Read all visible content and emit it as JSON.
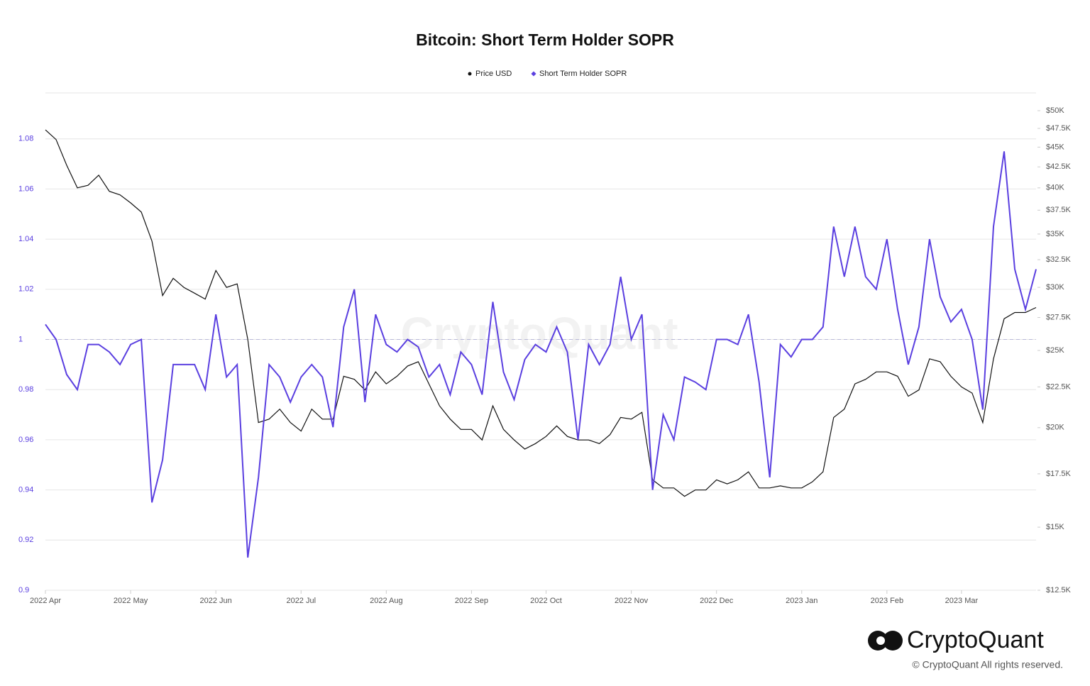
{
  "chart_data": {
    "type": "line",
    "title": "Bitcoin: Short Term Holder SOPR",
    "watermark": "CryptoQuant",
    "categories": [
      "2022 Apr",
      null,
      null,
      null,
      null,
      null,
      null,
      null,
      "2022 May",
      null,
      null,
      null,
      null,
      null,
      null,
      null,
      "2022 Jun",
      null,
      null,
      null,
      null,
      null,
      null,
      null,
      "2022 Jul",
      null,
      null,
      null,
      null,
      null,
      null,
      null,
      "2022 Aug",
      null,
      null,
      null,
      null,
      null,
      null,
      null,
      "2022 Sep",
      null,
      null,
      null,
      null,
      null,
      null,
      "2022 Oct",
      null,
      null,
      null,
      null,
      null,
      null,
      null,
      "2022 Nov",
      null,
      null,
      null,
      null,
      null,
      null,
      null,
      "2022 Dec",
      null,
      null,
      null,
      null,
      null,
      null,
      null,
      "2023 Jan",
      null,
      null,
      null,
      null,
      null,
      null,
      null,
      "2023 Feb",
      null,
      null,
      null,
      null,
      null,
      null,
      "2023 Mar",
      null,
      null,
      null,
      null,
      null,
      null,
      null
    ],
    "series": [
      {
        "name": "Price USD",
        "color": "#111111",
        "axis": "y2",
        "values": [
          47300,
          46000,
          42700,
          40000,
          40300,
          41500,
          39600,
          39200,
          38300,
          37300,
          34300,
          29300,
          30800,
          30000,
          29500,
          29000,
          31500,
          30000,
          30300,
          25800,
          20300,
          20500,
          21100,
          20300,
          19800,
          21100,
          20500,
          20500,
          23200,
          23000,
          22300,
          23500,
          22700,
          23200,
          23900,
          24200,
          22700,
          21300,
          20500,
          19900,
          19900,
          19300,
          21300,
          19900,
          19300,
          18800,
          19100,
          19500,
          20100,
          19500,
          19300,
          19300,
          19100,
          19600,
          20600,
          20500,
          20900,
          17200,
          16800,
          16800,
          16400,
          16700,
          16700,
          17200,
          17000,
          17200,
          17600,
          16800,
          16800,
          16900,
          16800,
          16800,
          17100,
          17600,
          20600,
          21100,
          22700,
          23000,
          23500,
          23500,
          23200,
          21900,
          22300,
          24400,
          24200,
          23200,
          22500,
          22100,
          20300,
          24400,
          27400,
          27900,
          27900,
          28300
        ]
      },
      {
        "name": "Short Term Holder SOPR",
        "color": "#5a3fe0",
        "values": [
          1.006,
          1.0,
          0.986,
          0.98,
          0.998,
          0.998,
          0.995,
          0.99,
          0.998,
          1.0,
          0.935,
          0.952,
          0.99,
          0.99,
          0.99,
          0.98,
          1.01,
          0.985,
          0.99,
          0.913,
          0.945,
          0.99,
          0.985,
          0.975,
          0.985,
          0.99,
          0.985,
          0.965,
          1.005,
          1.02,
          0.975,
          1.01,
          0.998,
          0.995,
          1.0,
          0.997,
          0.985,
          0.99,
          0.978,
          0.995,
          0.99,
          0.978,
          1.015,
          0.987,
          0.976,
          0.992,
          0.998,
          0.995,
          1.005,
          0.995,
          0.96,
          0.998,
          0.99,
          0.998,
          1.025,
          1.0,
          1.01,
          0.94,
          0.97,
          0.96,
          0.985,
          0.983,
          0.98,
          1.0,
          1.0,
          0.998,
          1.01,
          0.983,
          0.945,
          0.998,
          0.993,
          1.0,
          1.0,
          1.005,
          1.045,
          1.025,
          1.045,
          1.025,
          1.02,
          1.04,
          1.012,
          0.99,
          1.005,
          1.04,
          1.017,
          1.007,
          1.012,
          1.0,
          0.972,
          1.045,
          1.075,
          1.028,
          1.012,
          1.028
        ]
      }
    ],
    "ylim": [
      0.9,
      1.1
    ],
    "yticks": [
      0.9,
      0.92,
      0.94,
      0.96,
      0.98,
      1,
      1.02,
      1.04,
      1.06,
      1.08
    ],
    "y2lim": [
      12500,
      50000
    ],
    "y2scale": "log",
    "y2ticks": [
      {
        "value": 12500,
        "label": "$12.5K"
      },
      {
        "value": 15000,
        "label": "$15K"
      },
      {
        "value": 17500,
        "label": "$17.5K"
      },
      {
        "value": 20000,
        "label": "$20K"
      },
      {
        "value": 22500,
        "label": "$22.5K"
      },
      {
        "value": 25000,
        "label": "$25K"
      },
      {
        "value": 27500,
        "label": "$27.5K"
      },
      {
        "value": 30000,
        "label": "$30K"
      },
      {
        "value": 32500,
        "label": "$32.5K"
      },
      {
        "value": 35000,
        "label": "$35K"
      },
      {
        "value": 37500,
        "label": "$37.5K"
      },
      {
        "value": 40000,
        "label": "$40K"
      },
      {
        "value": 42500,
        "label": "$42.5K"
      },
      {
        "value": 45000,
        "label": "$45K"
      },
      {
        "value": 47500,
        "label": "$47.5K"
      },
      {
        "value": 50000,
        "label": "$50K"
      }
    ],
    "reference_line": 1,
    "grid": true,
    "legend": "top"
  },
  "branding": {
    "logo": "CryptoQuant",
    "copyright": "© CryptoQuant All rights reserved."
  }
}
